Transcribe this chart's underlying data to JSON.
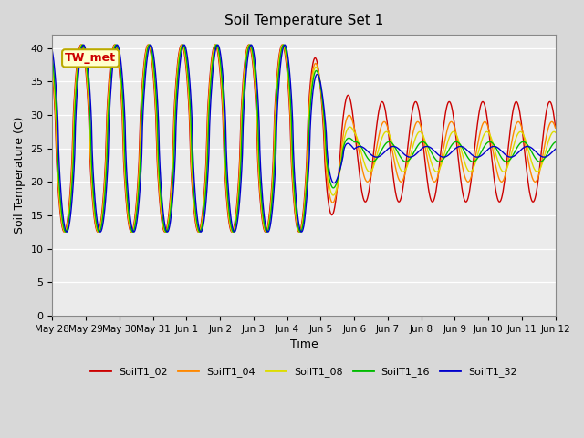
{
  "title": "Soil Temperature Set 1",
  "xlabel": "Time",
  "ylabel": "Soil Temperature (C)",
  "ylim": [
    0,
    42
  ],
  "yticks": [
    0,
    5,
    10,
    15,
    20,
    25,
    30,
    35,
    40
  ],
  "bg_color": "#d8d8d8",
  "plot_bg_color": "#ebebeb",
  "series_colors": {
    "SoilT1_02": "#cc0000",
    "SoilT1_04": "#ff8800",
    "SoilT1_08": "#dddd00",
    "SoilT1_16": "#00bb00",
    "SoilT1_32": "#0000cc"
  },
  "annotation_text": "TW_met",
  "x_tick_labels": [
    "May 28",
    "May 29",
    "May 30",
    "May 31",
    "Jun 1",
    "Jun 2",
    "Jun 3",
    "Jun 4",
    "Jun 5",
    "Jun 6",
    "Jun 7",
    "Jun 8",
    "Jun 9",
    "Jun 10",
    "Jun 11",
    "Jun 12"
  ],
  "num_days": 15,
  "transition_day": 9.0,
  "phase1_base": 26.5,
  "phase1_amp": 14.0,
  "phase1_min": 9.0,
  "phase2_base": 24.5,
  "phase2_amps": [
    7.5,
    4.5,
    3.0,
    1.5,
    0.8
  ],
  "phase2_lags": [
    0.0,
    1.5,
    3.0,
    5.0,
    8.0
  ],
  "depth_lags_phase1": [
    0.0,
    0.3,
    0.6,
    1.0,
    1.8
  ]
}
